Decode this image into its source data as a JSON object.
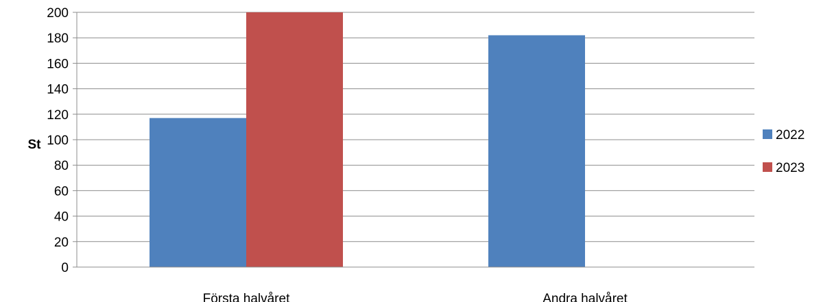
{
  "chart_data": {
    "type": "bar",
    "categories": [
      "Första halvåret",
      "Andra halvåret"
    ],
    "series": [
      {
        "name": "2022",
        "values": [
          117,
          182
        ],
        "color": "#4F81BD"
      },
      {
        "name": "2023",
        "values": [
          200,
          null
        ],
        "color": "#C0504D"
      }
    ],
    "ylabel": "St",
    "ylim": [
      0,
      200
    ],
    "yticks": [
      0,
      20,
      40,
      60,
      80,
      100,
      120,
      140,
      160,
      180,
      200
    ],
    "grid": true,
    "legend_position": "right"
  }
}
